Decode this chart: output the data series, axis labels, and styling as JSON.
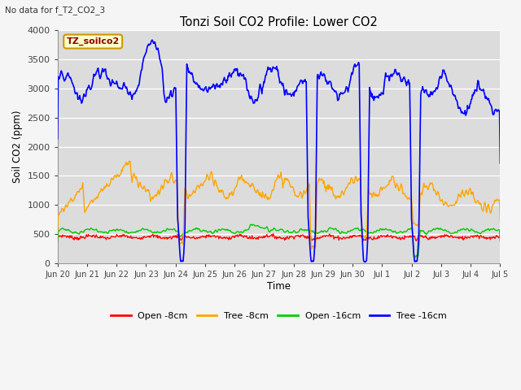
{
  "title": "Tonzi Soil CO2 Profile: Lower CO2",
  "subtitle": "No data for f_T2_CO2_3",
  "ylabel": "Soil CO2 (ppm)",
  "xlabel": "Time",
  "legend_label": "TZ_soilco2",
  "ylim": [
    0,
    4000
  ],
  "xlim": [
    0,
    15
  ],
  "background_color": "#dcdcdc",
  "fig_background": "#f5f5f5",
  "series_colors": {
    "open_8cm": "#ff0000",
    "tree_8cm": "#ffa500",
    "open_16cm": "#00cc00",
    "tree_16cm": "#0000ff"
  },
  "xtick_labels": [
    "Jun 20",
    "Jun 21",
    "Jun 22",
    "Jun 23",
    "Jun 24",
    "Jun 25",
    "Jun 26",
    "Jun 27",
    "Jun 28",
    "Jun 29",
    "Jun 30",
    "Jul 1",
    "Jul 2",
    "Jul 3",
    "Jul 4",
    "Jul 5"
  ],
  "ytick_labels": [
    "0",
    "500",
    "1000",
    "1500",
    "2000",
    "2500",
    "3000",
    "3500",
    "4000"
  ],
  "ytick_values": [
    0,
    500,
    1000,
    1500,
    2000,
    2500,
    3000,
    3500,
    4000
  ],
  "legend_entries": [
    "Open -8cm",
    "Tree -8cm",
    "Open -16cm",
    "Tree -16cm"
  ]
}
